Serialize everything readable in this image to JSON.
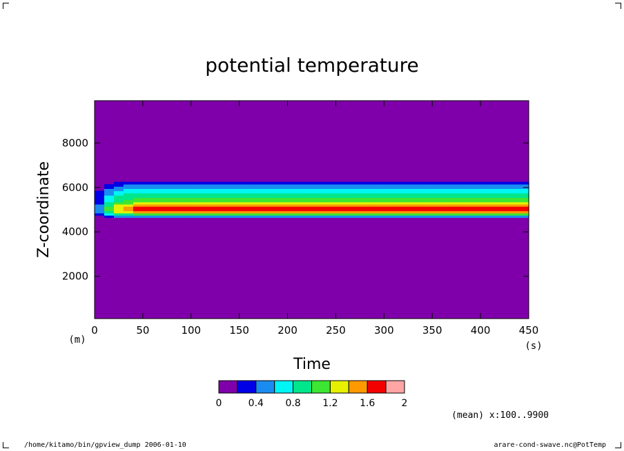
{
  "chart_data": {
    "type": "heatmap",
    "title": "potential temperature",
    "xlabel": "Time",
    "ylabel": "Z-coordinate",
    "x_unit": "(s)",
    "y_unit": "(m)",
    "xlim": [
      0,
      450
    ],
    "ylim": [
      100,
      9900
    ],
    "x_ticks": [
      0,
      50,
      100,
      150,
      200,
      250,
      300,
      350,
      400,
      450
    ],
    "y_ticks": [
      2000,
      4000,
      6000,
      8000
    ],
    "colorbar": {
      "levels": [
        0,
        0.2,
        0.4,
        0.6,
        0.8,
        1.0,
        1.2,
        1.4,
        1.6,
        1.8,
        2.0
      ],
      "tick_labels": [
        "0",
        "0.4",
        "0.8",
        "1.2",
        "1.6",
        "2"
      ],
      "colors": [
        "#7f00aa",
        "#0000e6",
        "#1a8cf0",
        "#00f5f5",
        "#00e68c",
        "#3ce632",
        "#e6f000",
        "#ff9900",
        "#f50000",
        "#ffa5a5"
      ]
    },
    "profile": [
      {
        "z": 4600,
        "value": 0.1
      },
      {
        "z": 4700,
        "value": 0.5
      },
      {
        "z": 4800,
        "value": 1.1
      },
      {
        "z": 4900,
        "value": 1.5
      },
      {
        "z": 5000,
        "value": 1.7
      },
      {
        "z": 5100,
        "value": 1.7
      },
      {
        "z": 5200,
        "value": 1.5
      },
      {
        "z": 5300,
        "value": 1.3
      },
      {
        "z": 5400,
        "value": 1.2
      },
      {
        "z": 5500,
        "value": 1.1
      },
      {
        "z": 5600,
        "value": 1.0
      },
      {
        "z": 5700,
        "value": 0.9
      },
      {
        "z": 5800,
        "value": 0.8
      },
      {
        "z": 5900,
        "value": 0.7
      },
      {
        "z": 6000,
        "value": 0.6
      },
      {
        "z": 6100,
        "value": 0.45
      },
      {
        "z": 6200,
        "value": 0.3
      }
    ],
    "annotation": "(mean) x:100..9900"
  },
  "footer": {
    "left": "/home/kitamo/bin/gpview_dump  2006-01-10",
    "right": "arare-cond-swave.nc@PotTemp"
  }
}
